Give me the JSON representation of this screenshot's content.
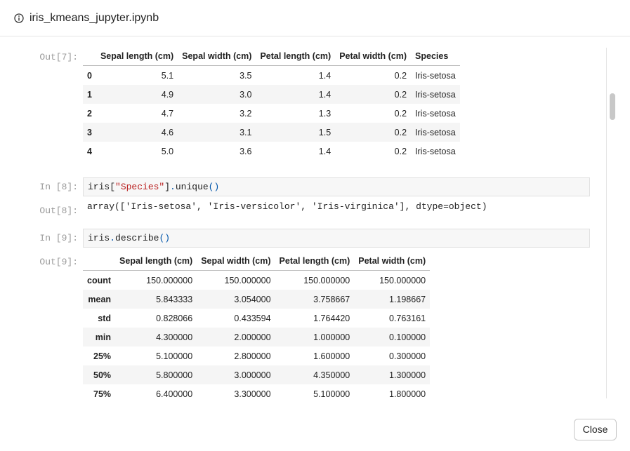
{
  "header": {
    "title": "iris_kmeans_jupyter.ipynb"
  },
  "cells": [
    {
      "prompt": "Out[7]:",
      "table": {
        "columns": [
          "",
          "Sepal length (cm)",
          "Sepal width (cm)",
          "Petal length (cm)",
          "Petal width (cm)",
          "Species"
        ],
        "rows": [
          [
            "0",
            "5.1",
            "3.5",
            "1.4",
            "0.2",
            "Iris-setosa"
          ],
          [
            "1",
            "4.9",
            "3.0",
            "1.4",
            "0.2",
            "Iris-setosa"
          ],
          [
            "2",
            "4.7",
            "3.2",
            "1.3",
            "0.2",
            "Iris-setosa"
          ],
          [
            "3",
            "4.6",
            "3.1",
            "1.5",
            "0.2",
            "Iris-setosa"
          ],
          [
            "4",
            "5.0",
            "3.6",
            "1.4",
            "0.2",
            "Iris-setosa"
          ]
        ]
      }
    },
    {
      "prompt": "In [8]:",
      "code": [
        "iris[",
        "\"Species\"",
        "]",
        ".",
        "unique",
        "()"
      ]
    },
    {
      "prompt": "Out[8]:",
      "text": "array(['Iris-setosa', 'Iris-versicolor', 'Iris-virginica'], dtype=object)"
    },
    {
      "prompt": "In [9]:",
      "code": [
        "iris",
        ".",
        "describe",
        "()"
      ]
    },
    {
      "prompt": "Out[9]:",
      "table": {
        "columns": [
          "",
          "Sepal length (cm)",
          "Sepal width (cm)",
          "Petal length (cm)",
          "Petal width (cm)"
        ],
        "rows": [
          [
            "count",
            "150.000000",
            "150.000000",
            "150.000000",
            "150.000000"
          ],
          [
            "mean",
            "5.843333",
            "3.054000",
            "3.758667",
            "1.198667"
          ],
          [
            "std",
            "0.828066",
            "0.433594",
            "1.764420",
            "0.763161"
          ],
          [
            "min",
            "4.300000",
            "2.000000",
            "1.000000",
            "0.100000"
          ],
          [
            "25%",
            "5.100000",
            "2.800000",
            "1.600000",
            "0.300000"
          ],
          [
            "50%",
            "5.800000",
            "3.000000",
            "4.350000",
            "1.300000"
          ],
          [
            "75%",
            "6.400000",
            "3.300000",
            "5.100000",
            "1.800000"
          ]
        ]
      }
    }
  ],
  "button": "Close"
}
